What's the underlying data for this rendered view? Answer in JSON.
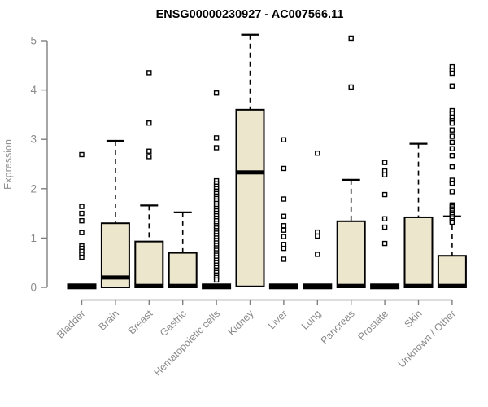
{
  "title": "ENSG00000230927 - AC007566.11",
  "chart_data": {
    "type": "boxplot",
    "title": "ENSG00000230927 - AC007566.11",
    "xlabel": "",
    "ylabel": "Expression",
    "ylim": [
      0,
      5
    ],
    "yticks": [
      0,
      1,
      2,
      3,
      4,
      5
    ],
    "grid": false,
    "legend": "none",
    "categories": [
      "Bladder",
      "Brain",
      "Breast",
      "Gastric",
      "Hematopoietic cells",
      "Kidney",
      "Liver",
      "Lung",
      "Pancreas",
      "Prostate",
      "Skin",
      "Unknown / Other"
    ],
    "series": [
      {
        "name": "Bladder",
        "q1": 0,
        "median": 0.02,
        "q3": 0.04,
        "whisker_low": 0,
        "whisker_high": 0.04,
        "outliers": [
          2.69,
          1.64,
          1.5,
          1.35,
          1.11,
          0.84,
          0.79,
          0.73,
          0.67,
          0.61
        ]
      },
      {
        "name": "Brain",
        "q1": 0,
        "median": 0.2,
        "q3": 1.3,
        "whisker_low": 0,
        "whisker_high": 2.97,
        "outliers": []
      },
      {
        "name": "Breast",
        "q1": 0,
        "median": 0.03,
        "q3": 0.93,
        "whisker_low": 0,
        "whisker_high": 1.66,
        "outliers": [
          4.35,
          3.33,
          2.76,
          2.65
        ]
      },
      {
        "name": "Gastric",
        "q1": 0,
        "median": 0.03,
        "q3": 0.7,
        "whisker_low": 0,
        "whisker_high": 1.52,
        "outliers": []
      },
      {
        "name": "Hematopoietic cells",
        "q1": 0,
        "median": 0.02,
        "q3": 0.04,
        "whisker_low": 0,
        "whisker_high": 0.04,
        "outliers": [
          3.94,
          3.03,
          2.83,
          2.16,
          2.1,
          2.05,
          2.0,
          1.95,
          1.9,
          1.85,
          1.8,
          1.75,
          1.7,
          1.65,
          1.6,
          1.55,
          1.5,
          1.45,
          1.4,
          1.35,
          1.3,
          1.25,
          1.2,
          1.15,
          1.1,
          1.05,
          1.0,
          0.95,
          0.9,
          0.85,
          0.8,
          0.75,
          0.7,
          0.65,
          0.6,
          0.55,
          0.5,
          0.45,
          0.4,
          0.35,
          0.3,
          0.25,
          0.2,
          0.15
        ]
      },
      {
        "name": "Kidney",
        "q1": 0.02,
        "median": 2.33,
        "q3": 3.6,
        "whisker_low": 0,
        "whisker_high": 5.12,
        "outliers": []
      },
      {
        "name": "Liver",
        "q1": 0,
        "median": 0.02,
        "q3": 0.04,
        "whisker_low": 0,
        "whisker_high": 0.04,
        "outliers": [
          2.99,
          2.41,
          1.79,
          1.44,
          1.25,
          1.16,
          1.03,
          0.87,
          0.79,
          0.57
        ]
      },
      {
        "name": "Lung",
        "q1": 0,
        "median": 0.02,
        "q3": 0.04,
        "whisker_low": 0,
        "whisker_high": 0.04,
        "outliers": [
          2.72,
          1.12,
          1.04,
          0.67
        ]
      },
      {
        "name": "Pancreas",
        "q1": 0,
        "median": 0.03,
        "q3": 1.34,
        "whisker_low": 0,
        "whisker_high": 2.18,
        "outliers": [
          5.05,
          4.06
        ]
      },
      {
        "name": "Prostate",
        "q1": 0,
        "median": 0.02,
        "q3": 0.04,
        "whisker_low": 0,
        "whisker_high": 0.04,
        "outliers": [
          2.53,
          2.36,
          2.28,
          1.88,
          1.39,
          1.22,
          0.89
        ]
      },
      {
        "name": "Skin",
        "q1": 0,
        "median": 0.03,
        "q3": 1.42,
        "whisker_low": 0,
        "whisker_high": 2.91,
        "outliers": []
      },
      {
        "name": "Unknown / Other",
        "q1": 0,
        "median": 0.03,
        "q3": 0.64,
        "whisker_low": 0,
        "whisker_high": 1.44,
        "outliers": [
          4.47,
          4.4,
          4.34,
          4.08,
          3.58,
          3.52,
          3.45,
          3.38,
          3.33,
          3.19,
          3.06,
          2.94,
          2.81,
          2.67,
          2.44,
          2.17,
          2.11,
          1.94,
          1.67,
          1.63,
          1.59,
          1.55,
          1.51,
          1.47,
          1.43,
          1.39,
          1.35,
          1.32
        ]
      }
    ],
    "colors": {
      "box_fill": "#ece6cd",
      "box_border": "#000000",
      "median": "#000000",
      "whisker": "#000000",
      "outlier_stroke": "#000000",
      "outlier_fill": "#ffffff",
      "axis": "#7f7f7f",
      "tick_label": "#8a8a8a",
      "title": "#000000",
      "background": "#ffffff"
    }
  }
}
